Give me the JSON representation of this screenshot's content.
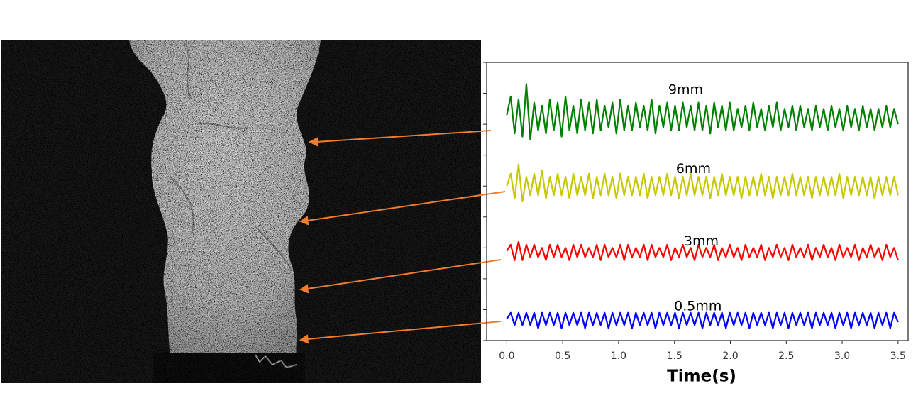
{
  "chart_data": {
    "type": "line",
    "xlabel": "Time(s)",
    "xlim": [
      -0.18,
      3.59
    ],
    "ylim": [
      0,
      9
    ],
    "xticks": [
      {
        "value": 0,
        "label": "0.0"
      },
      0.5,
      {
        "value": 1,
        "label": "1.0"
      },
      1.5,
      {
        "value": 2,
        "label": "2.0"
      },
      2.5,
      {
        "value": 3,
        "label": "3.0"
      },
      3.5
    ],
    "yticks": [
      0,
      1,
      2,
      3,
      4,
      5,
      6,
      7,
      8,
      9
    ],
    "annotations": [
      {
        "text": "9mm",
        "x": 1.6,
        "y": 8.1
      },
      {
        "text": "6mm",
        "x": 1.67,
        "y": 5.55
      },
      {
        "text": "3mm",
        "x": 1.74,
        "y": 3.2
      },
      {
        "text": "0.5mm",
        "x": 1.71,
        "y": 1.1
      }
    ],
    "x": [
      0,
      0.035,
      0.07,
      0.105,
      0.14,
      0.175,
      0.21,
      0.245,
      0.28,
      0.315,
      0.35,
      0.385,
      0.42,
      0.455,
      0.49,
      0.525,
      0.56,
      0.595,
      0.63,
      0.665,
      0.7,
      0.735,
      0.77,
      0.805,
      0.84,
      0.875,
      0.91,
      0.945,
      0.98,
      1.015,
      1.05,
      1.085,
      1.12,
      1.155,
      1.19,
      1.225,
      1.26,
      1.295,
      1.33,
      1.365,
      1.4,
      1.435,
      1.47,
      1.505,
      1.54,
      1.575,
      1.61,
      1.645,
      1.68,
      1.715,
      1.75,
      1.785,
      1.82,
      1.855,
      1.89,
      1.925,
      1.96,
      1.995,
      2.03,
      2.065,
      2.1,
      2.135,
      2.17,
      2.205,
      2.24,
      2.275,
      2.31,
      2.345,
      2.38,
      2.415,
      2.45,
      2.485,
      2.52,
      2.555,
      2.59,
      2.625,
      2.66,
      2.695,
      2.73,
      2.765,
      2.8,
      2.835,
      2.87,
      2.905,
      2.94,
      2.975,
      3.01,
      3.045,
      3.08,
      3.115,
      3.15,
      3.185,
      3.22,
      3.255,
      3.29,
      3.325,
      3.36,
      3.395,
      3.43,
      3.465,
      3.5
    ],
    "series": [
      {
        "name": "9mm",
        "color": "#008000",
        "values": [
          7.3,
          7.9,
          6.7,
          7.8,
          6.6,
          8.3,
          6.5,
          7.7,
          6.8,
          7.6,
          6.7,
          7.8,
          6.8,
          7.7,
          6.6,
          7.9,
          6.8,
          7.6,
          6.7,
          7.8,
          6.8,
          7.7,
          6.7,
          7.8,
          6.8,
          7.6,
          6.9,
          7.7,
          6.7,
          7.8,
          6.8,
          7.6,
          6.8,
          7.7,
          6.9,
          7.6,
          6.8,
          7.8,
          6.7,
          7.6,
          6.9,
          7.7,
          6.8,
          7.6,
          6.8,
          7.7,
          6.9,
          7.6,
          6.8,
          7.7,
          6.8,
          7.6,
          6.7,
          7.7,
          6.9,
          7.6,
          6.8,
          7.7,
          6.8,
          7.5,
          6.9,
          7.6,
          6.8,
          7.7,
          6.9,
          7.5,
          6.8,
          7.6,
          6.9,
          7.7,
          6.8,
          7.5,
          6.9,
          7.6,
          6.8,
          7.6,
          6.9,
          7.5,
          6.8,
          7.6,
          6.9,
          7.5,
          6.8,
          7.6,
          6.9,
          7.5,
          6.8,
          7.6,
          6.9,
          7.5,
          6.8,
          7.6,
          6.9,
          7.5,
          6.8,
          7.5,
          6.9,
          7.6,
          6.9,
          7.5,
          7.0
        ]
      },
      {
        "name": "6mm",
        "color": "#c8c800",
        "values": [
          5.0,
          5.4,
          4.6,
          5.7,
          4.5,
          5.3,
          4.7,
          5.4,
          4.7,
          5.5,
          4.6,
          5.3,
          4.7,
          5.4,
          4.7,
          5.3,
          4.6,
          5.4,
          4.7,
          5.3,
          4.7,
          5.4,
          4.6,
          5.3,
          4.7,
          5.4,
          4.7,
          5.3,
          4.6,
          5.4,
          4.7,
          5.3,
          4.7,
          5.3,
          4.7,
          5.4,
          4.6,
          5.3,
          4.7,
          5.3,
          4.7,
          5.4,
          4.7,
          5.3,
          4.6,
          5.3,
          4.7,
          5.4,
          4.7,
          5.3,
          4.7,
          5.3,
          4.6,
          5.3,
          4.7,
          5.4,
          4.7,
          5.3,
          4.7,
          5.3,
          4.6,
          5.3,
          4.7,
          5.3,
          4.7,
          5.4,
          4.7,
          5.3,
          4.6,
          5.3,
          4.7,
          5.3,
          4.7,
          5.4,
          4.7,
          5.3,
          4.7,
          5.3,
          4.6,
          5.3,
          4.7,
          5.3,
          4.7,
          5.3,
          4.7,
          5.4,
          4.6,
          5.3,
          4.7,
          5.3,
          4.7,
          5.3,
          4.7,
          5.3,
          4.6,
          5.3,
          4.7,
          5.3,
          4.7,
          5.3,
          4.7
        ]
      },
      {
        "name": "3mm",
        "color": "#ff0000",
        "values": [
          2.9,
          3.1,
          2.6,
          3.2,
          2.6,
          3.1,
          2.7,
          3.1,
          2.7,
          3.0,
          2.6,
          3.1,
          2.7,
          3.1,
          2.7,
          3.0,
          2.6,
          3.1,
          2.7,
          3.1,
          2.7,
          3.0,
          2.7,
          3.1,
          2.6,
          3.1,
          2.7,
          3.0,
          2.7,
          3.1,
          2.6,
          3.1,
          2.7,
          3.0,
          2.7,
          3.1,
          2.6,
          3.1,
          2.7,
          3.0,
          2.7,
          3.1,
          2.6,
          3.0,
          2.7,
          3.1,
          2.7,
          3.0,
          2.6,
          3.1,
          2.7,
          3.0,
          2.7,
          3.1,
          2.6,
          3.0,
          2.7,
          3.1,
          2.7,
          3.0,
          2.6,
          3.1,
          2.7,
          3.0,
          2.7,
          3.1,
          2.6,
          3.0,
          2.7,
          3.1,
          2.7,
          3.0,
          2.6,
          3.1,
          2.7,
          3.0,
          2.7,
          3.1,
          2.6,
          3.0,
          2.7,
          3.1,
          2.7,
          3.0,
          2.6,
          3.1,
          2.7,
          3.0,
          2.7,
          3.1,
          2.6,
          3.0,
          2.7,
          3.1,
          2.7,
          3.0,
          2.6,
          3.1,
          2.7,
          3.0,
          2.6
        ]
      },
      {
        "name": "0.5mm",
        "color": "#0000ff",
        "values": [
          0.7,
          0.9,
          0.5,
          0.9,
          0.5,
          0.9,
          0.5,
          0.9,
          0.4,
          0.9,
          0.5,
          0.9,
          0.5,
          0.9,
          0.4,
          0.9,
          0.5,
          0.9,
          0.5,
          0.9,
          0.4,
          0.9,
          0.5,
          0.9,
          0.5,
          0.9,
          0.4,
          0.9,
          0.5,
          0.9,
          0.5,
          0.9,
          0.4,
          0.9,
          0.5,
          0.9,
          0.5,
          0.9,
          0.4,
          0.9,
          0.5,
          0.9,
          0.5,
          0.9,
          0.4,
          0.9,
          0.5,
          0.9,
          0.5,
          0.9,
          0.4,
          0.9,
          0.5,
          0.9,
          0.5,
          0.9,
          0.4,
          0.9,
          0.5,
          0.9,
          0.5,
          0.9,
          0.4,
          0.9,
          0.5,
          0.9,
          0.5,
          0.9,
          0.4,
          0.9,
          0.5,
          0.9,
          0.4,
          0.9,
          0.5,
          0.9,
          0.5,
          0.9,
          0.4,
          0.9,
          0.5,
          0.9,
          0.5,
          0.9,
          0.4,
          0.9,
          0.5,
          0.9,
          0.4,
          0.9,
          0.5,
          0.9,
          0.5,
          0.9,
          0.4,
          0.9,
          0.5,
          0.9,
          0.4,
          0.9,
          0.6
        ]
      }
    ]
  }
}
